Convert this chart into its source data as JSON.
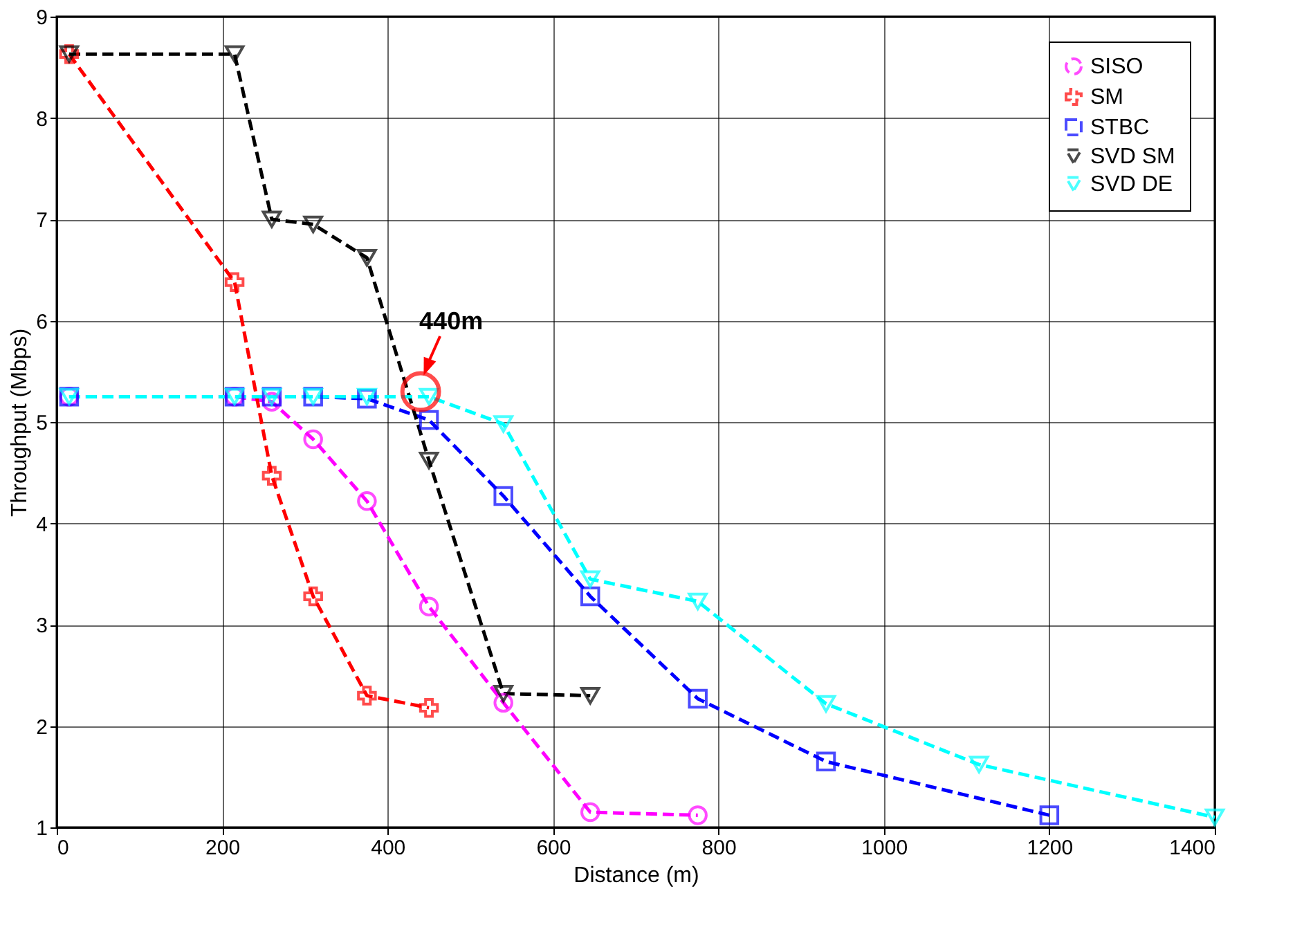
{
  "chart_data": {
    "type": "line",
    "xlabel": "Distance (m)",
    "ylabel": "Throughput (Mbps)",
    "xlim": [
      0,
      1400
    ],
    "xticks": [
      0,
      200,
      400,
      600,
      800,
      1000,
      1200,
      1400
    ],
    "ylim": [
      1,
      9
    ],
    "yticks": [
      1,
      2,
      3,
      4,
      5,
      6,
      7,
      8,
      9
    ],
    "grid": true,
    "legend": "top right",
    "series": [
      {
        "name": "SISO",
        "color": "#ff00ff",
        "marker": "circle",
        "line_style": "dashed",
        "x": [
          15,
          215,
          260,
          310,
          375,
          450,
          540,
          645,
          775
        ],
        "values": [
          5.25,
          5.25,
          5.2,
          4.83,
          4.22,
          3.18,
          2.23,
          1.15,
          1.12
        ]
      },
      {
        "name": "SM",
        "color": "#ff0000",
        "marker": "cross",
        "line_style": "dashed",
        "x": [
          15,
          215,
          260,
          310,
          375,
          450
        ],
        "values": [
          8.63,
          6.38,
          4.47,
          3.28,
          2.3,
          2.18
        ]
      },
      {
        "name": "STBC",
        "color": "#0000ff",
        "marker": "square",
        "line_style": "dashed",
        "x": [
          15,
          215,
          260,
          310,
          375,
          450,
          540,
          645,
          775,
          930,
          1200
        ],
        "values": [
          5.25,
          5.25,
          5.25,
          5.25,
          5.23,
          5.02,
          4.27,
          3.28,
          2.27,
          1.65,
          1.12
        ]
      },
      {
        "name": "SVD SM",
        "color": "#000000",
        "marker": "triangle",
        "line_style": "dashed",
        "x": [
          15,
          215,
          260,
          310,
          375,
          450,
          540,
          645
        ],
        "values": [
          8.63,
          8.63,
          7.0,
          6.95,
          6.62,
          4.62,
          2.32,
          2.3
        ]
      },
      {
        "name": "SVD DE",
        "color": "#00ffff",
        "marker": "triangle",
        "line_style": "dashed",
        "x": [
          15,
          215,
          260,
          310,
          375,
          450,
          540,
          645,
          775,
          930,
          1115,
          1400
        ],
        "values": [
          5.25,
          5.25,
          5.25,
          5.25,
          5.25,
          5.25,
          4.98,
          3.45,
          3.23,
          2.22,
          1.62,
          1.1
        ]
      }
    ],
    "annotations": [
      {
        "text": "440m",
        "x": 440,
        "y": 5.3
      }
    ]
  }
}
